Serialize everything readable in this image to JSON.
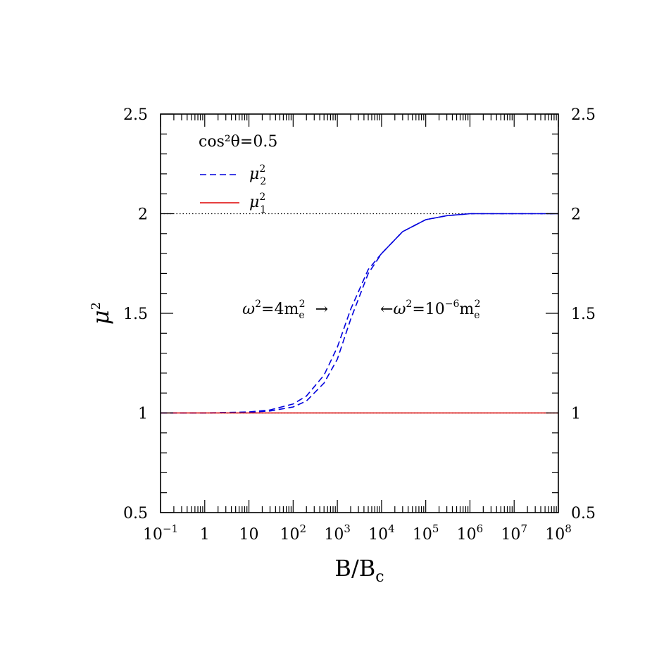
{
  "chart_data": {
    "type": "line",
    "title": "",
    "xlabel": "B/B",
    "xlabel_sub": "c",
    "ylabel": "μ",
    "ylabel_sup": "2",
    "x_scale": "log",
    "xlim": [
      0.1,
      100000000
    ],
    "ylim": [
      0.5,
      2.5
    ],
    "x_ticks": [
      {
        "value": 0.1,
        "base": "10",
        "exp": "−1"
      },
      {
        "value": 1,
        "base": "1",
        "exp": ""
      },
      {
        "value": 10,
        "base": "10",
        "exp": ""
      },
      {
        "value": 100,
        "base": "10",
        "exp": "2"
      },
      {
        "value": 1000,
        "base": "10",
        "exp": "3"
      },
      {
        "value": 10000,
        "base": "10",
        "exp": "4"
      },
      {
        "value": 100000,
        "base": "10",
        "exp": "5"
      },
      {
        "value": 1000000,
        "base": "10",
        "exp": "6"
      },
      {
        "value": 10000000,
        "base": "10",
        "exp": "7"
      },
      {
        "value": 100000000,
        "base": "10",
        "exp": "8"
      }
    ],
    "y_ticks": [
      {
        "value": 0.5,
        "label": "0.5"
      },
      {
        "value": 1,
        "label": "1"
      },
      {
        "value": 1.5,
        "label": "1.5"
      },
      {
        "value": 2,
        "label": "2"
      },
      {
        "value": 2.5,
        "label": "2.5"
      }
    ],
    "reference_lines": [
      {
        "y": 2,
        "style": "dotted",
        "color": "#000000"
      },
      {
        "y": 1,
        "style": "dotted",
        "color": "#000000"
      }
    ],
    "legend": {
      "placement": "top-left",
      "header": "cos²θ=0.5",
      "entries": [
        {
          "label": "μ",
          "sup": "2",
          "sub": "2",
          "style": "dashed",
          "color": "#0000dd"
        },
        {
          "label": "μ",
          "sup": "2",
          "sub": "1",
          "style": "solid",
          "color": "#dd0000"
        }
      ]
    },
    "series": [
      {
        "style": "dashed",
        "color": "#0000dd",
        "x": [
          0.1,
          1,
          10,
          30,
          100,
          200,
          500,
          1000,
          2000,
          5000,
          10000,
          30000,
          100000,
          300000,
          1000000,
          10000000,
          100000000
        ],
        "y": [
          1.0,
          1.0,
          1.005,
          1.015,
          1.045,
          1.085,
          1.19,
          1.33,
          1.52,
          1.72,
          1.8,
          1.91,
          1.97,
          1.99,
          2.0,
          2.0,
          2.0
        ]
      },
      {
        "style": "dashed",
        "color": "#0000dd",
        "x": [
          0.1,
          1,
          10,
          30,
          100,
          200,
          500,
          1000,
          2000,
          5000,
          10000,
          30000,
          100000,
          300000,
          1000000,
          10000000,
          100000000
        ],
        "y": [
          1.0,
          1.0,
          1.003,
          1.01,
          1.03,
          1.06,
          1.15,
          1.27,
          1.47,
          1.7,
          1.8,
          1.91,
          1.97,
          1.99,
          2.0,
          2.0,
          2.0
        ]
      },
      {
        "style": "solid",
        "color": "#dd0000",
        "x": [
          0.1,
          100000000
        ],
        "y": [
          1.0,
          1.0
        ]
      }
    ],
    "annotations": [
      {
        "text_pre": "ω",
        "sup1": "2",
        "text_mid": "=4m",
        "sub": "e",
        "sup2": "2",
        "arrow": "→",
        "arrow_side": "right",
        "x": 150,
        "y": 1.5
      },
      {
        "text_pre": "ω",
        "sup1": "2",
        "text_mid": "=10",
        "sup_exp": "−6",
        "text_post": "m",
        "sub": "e",
        "sup2": "2",
        "arrow": "←",
        "arrow_side": "left",
        "x": 7000,
        "y": 1.5
      }
    ]
  }
}
